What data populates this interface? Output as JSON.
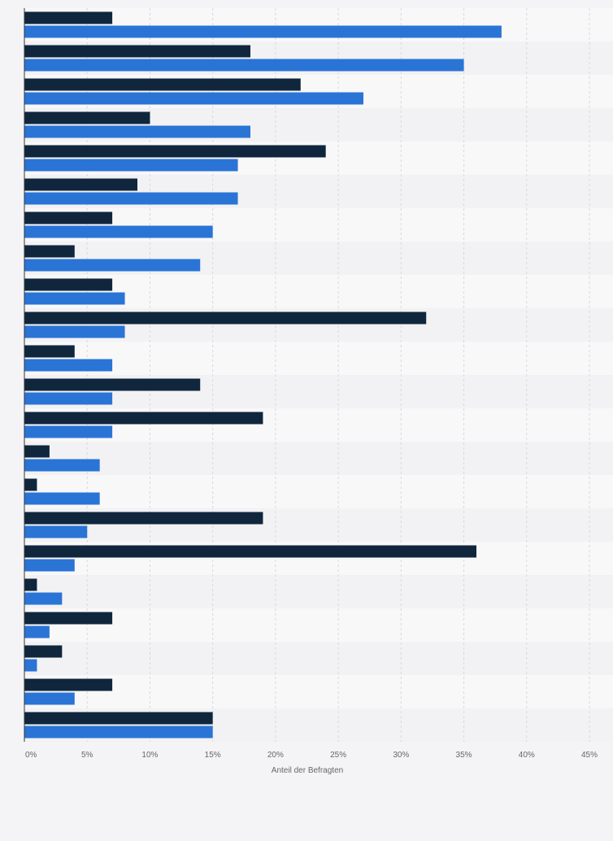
{
  "colors": {
    "background": "#f4f4f6",
    "band_light": "#f8f8f9",
    "band_dark": "#f2f2f4",
    "grid": "#d9d9dd",
    "axis": "#333333",
    "tick_text": "#666666",
    "series_dark": "#10263d",
    "series_blue": "#2a74d6"
  },
  "chart_data": {
    "type": "bar",
    "orientation": "horizontal",
    "title": "",
    "xlabel": "Anteil der Befragten",
    "ylabel": "",
    "xlim": [
      0,
      45
    ],
    "grid": true,
    "legend": "none",
    "x_ticks": [
      "0%",
      "5%",
      "10%",
      "15%",
      "20%",
      "25%",
      "30%",
      "35%",
      "40%",
      "45%"
    ],
    "categories": [
      "",
      "",
      "",
      "",
      "",
      "",
      "",
      "",
      "",
      "",
      "",
      "",
      "",
      "",
      "",
      "",
      "",
      "",
      "",
      "",
      "",
      ""
    ],
    "series": [
      {
        "color": "#10263d",
        "values": [
          7,
          18,
          22,
          10,
          24,
          9,
          7,
          4,
          7,
          32,
          4,
          14,
          19,
          2,
          1,
          19,
          36,
          1,
          7,
          3,
          7,
          15
        ]
      },
      {
        "color": "#2a74d6",
        "values": [
          38,
          35,
          27,
          18,
          17,
          17,
          15,
          14,
          8,
          8,
          7,
          7,
          7,
          6,
          6,
          5,
          4,
          3,
          2,
          1,
          4,
          15
        ]
      }
    ]
  }
}
